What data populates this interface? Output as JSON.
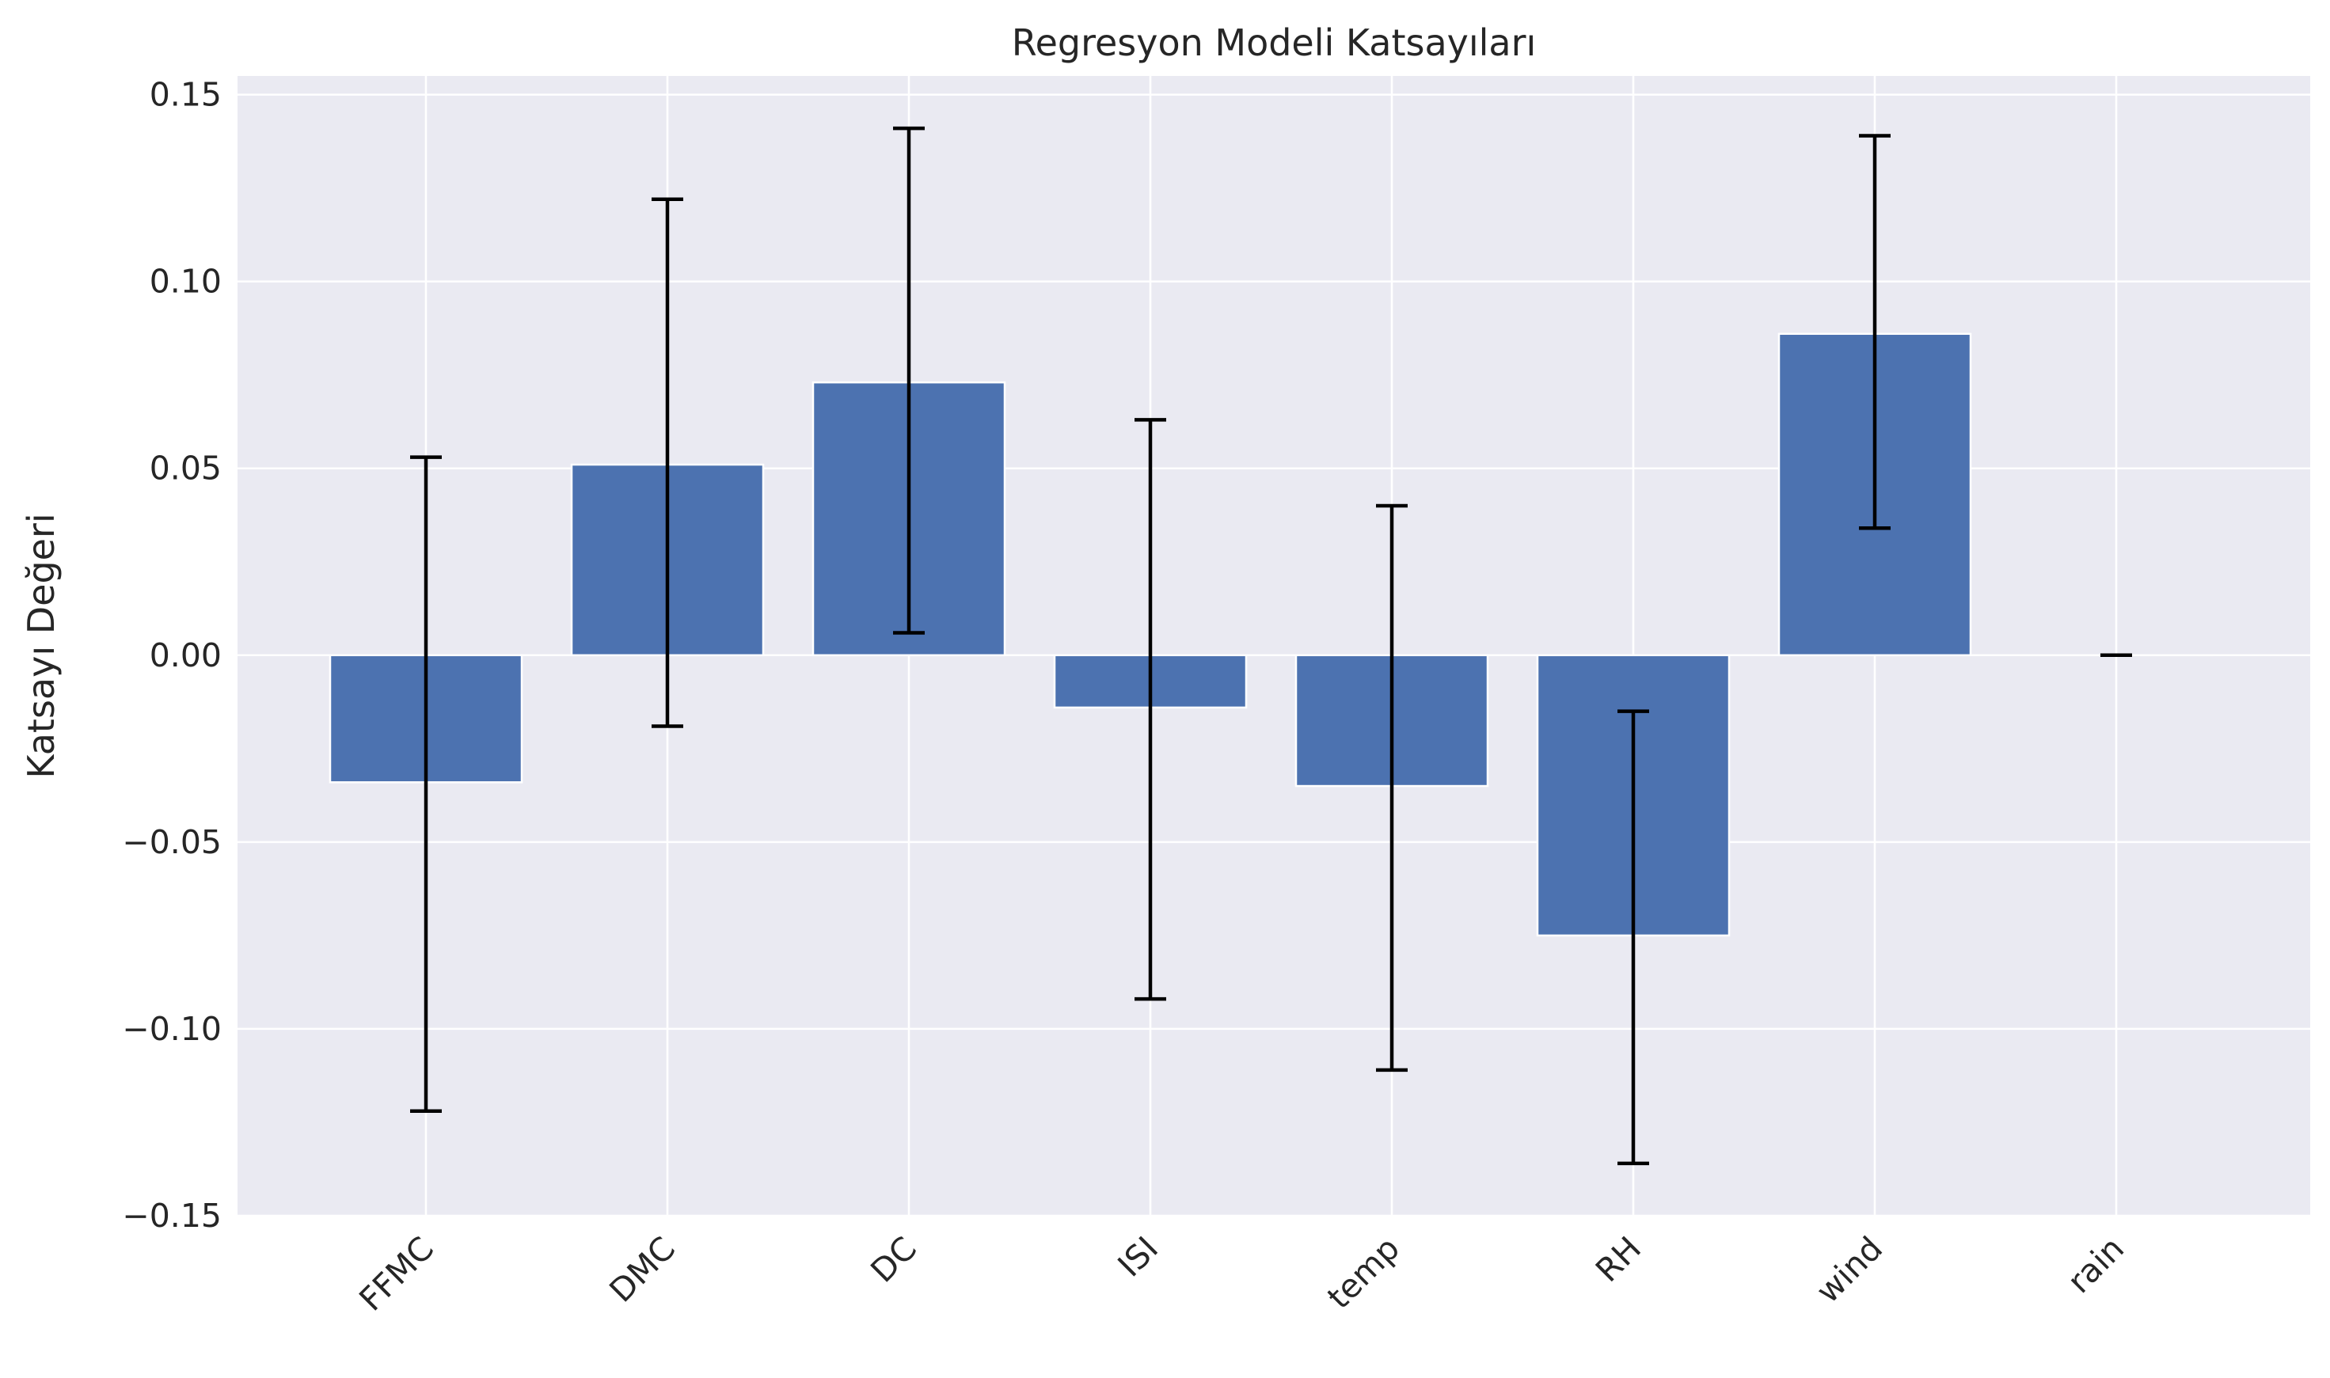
{
  "chart_data": {
    "type": "bar",
    "title": "Regresyon Modeli Katsayıları",
    "xlabel": "",
    "ylabel": "Katsayı Değeri",
    "categories": [
      "FFMC",
      "DMC",
      "DC",
      "ISI",
      "temp",
      "RH",
      "wind",
      "rain"
    ],
    "values": [
      -0.034,
      0.051,
      0.073,
      -0.014,
      -0.035,
      -0.075,
      0.086,
      0.0
    ],
    "error_low": [
      -0.122,
      -0.019,
      0.006,
      -0.092,
      -0.111,
      -0.136,
      0.034,
      0.0
    ],
    "error_high": [
      0.053,
      0.122,
      0.141,
      0.063,
      0.04,
      -0.015,
      0.139,
      0.0
    ],
    "ylim": [
      -0.15,
      0.155
    ],
    "yticks": [
      -0.15,
      -0.1,
      -0.05,
      0.0,
      0.05,
      0.1,
      0.15
    ],
    "ytick_labels": [
      "−0.15",
      "−0.10",
      "−0.05",
      "0.00",
      "0.05",
      "0.10",
      "0.15"
    ],
    "grid": true,
    "colors": {
      "bar": "#4c72b0",
      "background": "#eaeaf2",
      "grid": "#ffffff",
      "error_bar": "#000000"
    }
  }
}
